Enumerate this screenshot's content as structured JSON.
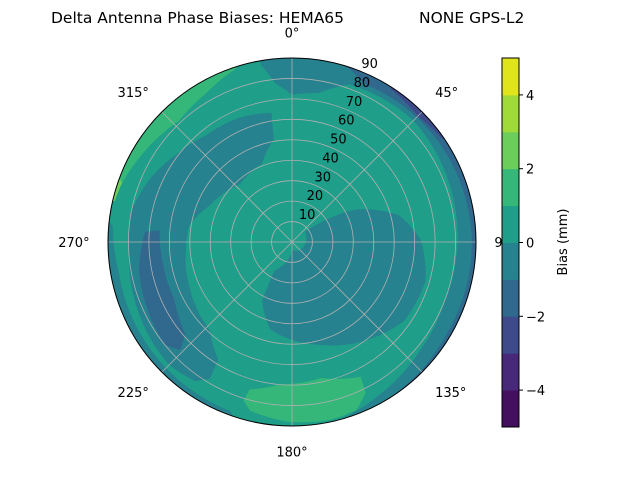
{
  "chart_data": {
    "type": "polar-contour",
    "title_left": "Delta Antenna Phase Biases: HEMA65",
    "title_right": "NONE GPS-L2",
    "angular_ticks": [
      {
        "az": 0,
        "label": "0°"
      },
      {
        "az": 45,
        "label": "45°"
      },
      {
        "az": 90,
        "label": "90°"
      },
      {
        "az": 135,
        "label": "135°"
      },
      {
        "az": 180,
        "label": "180°"
      },
      {
        "az": 225,
        "label": "225°"
      },
      {
        "az": 270,
        "label": "270°"
      },
      {
        "az": 315,
        "label": "315°"
      }
    ],
    "angular_direction": "clockwise, 0° at top",
    "radial_ticks": [
      10,
      20,
      30,
      40,
      50,
      60,
      70,
      80,
      90
    ],
    "radial_range": [
      0,
      90
    ],
    "grid": true,
    "levels": [
      -5,
      -4,
      -3,
      -2,
      -1,
      0,
      1,
      2,
      3,
      4,
      5
    ],
    "level_colors": [
      "#440f5e",
      "#482878",
      "#3e4a89",
      "#31688e",
      "#26828e",
      "#1f9e89",
      "#35b779",
      "#6ccd5a",
      "#a0da39",
      "#e0e41a"
    ],
    "background_band": [
      0,
      1
    ],
    "regions": [
      {
        "band": [
          -1,
          0
        ],
        "points": [
          [
            -10,
            95
          ],
          [
            -10,
            88
          ],
          [
            -6,
            78
          ],
          [
            0,
            72
          ],
          [
            10,
            74
          ],
          [
            20,
            82
          ],
          [
            45,
            84
          ],
          [
            70,
            82
          ],
          [
            90,
            81
          ],
          [
            110,
            80
          ],
          [
            130,
            82
          ],
          [
            150,
            86
          ],
          [
            165,
            90
          ],
          [
            168,
            95
          ]
        ]
      },
      {
        "band": [
          -2,
          -1
        ],
        "points": [
          [
            14,
            95
          ],
          [
            17,
            90
          ],
          [
            25,
            85
          ],
          [
            40,
            86
          ],
          [
            60,
            87
          ],
          [
            90,
            88
          ],
          [
            120,
            88
          ],
          [
            150,
            90
          ],
          [
            155,
            95
          ]
        ]
      },
      {
        "band": [
          -3,
          -2
        ],
        "points": [
          [
            28,
            95
          ],
          [
            33,
            89
          ],
          [
            45,
            87
          ],
          [
            55,
            89
          ],
          [
            62,
            95
          ]
        ]
      },
      {
        "band": [
          -1,
          0
        ],
        "points": [
          [
            195,
            95
          ],
          [
            200,
            88
          ],
          [
            230,
            87
          ],
          [
            260,
            86
          ],
          [
            275,
            88
          ],
          [
            280,
            95
          ]
        ]
      },
      {
        "band": [
          -1,
          0
        ],
        "points": [
          [
            351,
            64
          ],
          [
            350,
            51
          ],
          [
            339,
            41
          ],
          [
            318,
            38
          ],
          [
            294,
            44
          ],
          [
            279,
            51
          ],
          [
            266,
            52
          ],
          [
            245,
            55
          ],
          [
            223,
            59
          ],
          [
            212,
            68
          ],
          [
            211,
            78
          ],
          [
            215,
            83
          ],
          [
            225,
            85
          ],
          [
            235,
            84
          ],
          [
            250,
            82
          ],
          [
            267,
            80
          ],
          [
            281,
            80
          ],
          [
            294,
            76
          ],
          [
            307,
            71
          ],
          [
            321,
            67
          ],
          [
            337,
            66
          ]
        ]
      },
      {
        "band": [
          -2,
          -1
        ],
        "points": [
          [
            274,
            72
          ],
          [
            275,
            65
          ],
          [
            260,
            64
          ],
          [
            244,
            64
          ],
          [
            229,
            69
          ],
          [
            226,
            76
          ],
          [
            231,
            80
          ],
          [
            245,
            78
          ],
          [
            260,
            76
          ]
        ]
      },
      {
        "band": [
          -1,
          0
        ],
        "points": [
          [
            52,
            8
          ],
          [
            63,
            35
          ],
          [
            76,
            54
          ],
          [
            89,
            63
          ],
          [
            106,
            68
          ],
          [
            125,
            67
          ],
          [
            141,
            61
          ],
          [
            165,
            52
          ],
          [
            194,
            44
          ],
          [
            207,
            32
          ],
          [
            211,
            16
          ],
          [
            180,
            4
          ]
        ]
      },
      {
        "band": [
          1,
          2
        ],
        "points": [
          [
            283,
            95
          ],
          [
            285,
            89
          ],
          [
            300,
            85
          ],
          [
            317,
            81
          ],
          [
            330,
            84
          ],
          [
            342,
            89
          ],
          [
            345,
            95
          ]
        ]
      },
      {
        "band": [
          2,
          3
        ],
        "points": [
          [
            282,
            95
          ],
          [
            283,
            89
          ],
          [
            289,
            88
          ],
          [
            294,
            95
          ]
        ]
      },
      {
        "band": [
          1,
          2
        ],
        "points": [
          [
            197,
            81
          ],
          [
            194,
            85
          ],
          [
            181,
            88
          ],
          [
            168,
            89
          ],
          [
            159,
            88
          ],
          [
            154,
            82
          ],
          [
            153,
            74
          ],
          [
            168,
            68
          ],
          [
            185,
            70
          ],
          [
            196,
            75
          ]
        ]
      }
    ],
    "colorbar": {
      "label": "Bias (mm)",
      "range": [
        -5,
        5
      ],
      "ticks": [
        {
          "value": 4,
          "label": "4"
        },
        {
          "value": 2,
          "label": "2"
        },
        {
          "value": 0,
          "label": "0"
        },
        {
          "value": -2,
          "label": "−2"
        },
        {
          "value": -4,
          "label": "−4"
        }
      ]
    }
  }
}
